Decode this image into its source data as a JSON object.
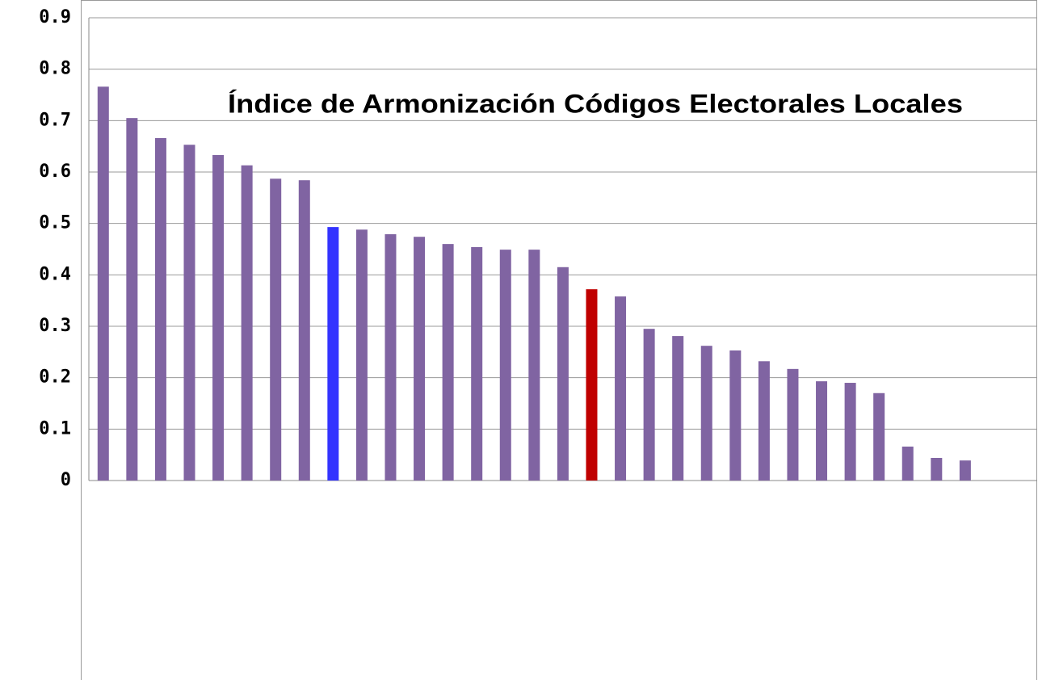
{
  "chart_data": {
    "type": "bar",
    "title": "Índice de Armonización Códigos Electorales Locales",
    "categories": [
      null,
      null,
      null,
      null,
      null,
      null,
      null,
      null,
      null,
      null,
      null,
      null,
      null,
      null,
      null,
      null,
      null,
      null,
      null,
      null,
      null,
      null,
      null,
      null,
      null,
      null,
      null,
      null,
      null,
      null,
      null
    ],
    "values": [
      0.766,
      0.705,
      0.666,
      0.653,
      0.633,
      0.613,
      0.587,
      0.584,
      0.493,
      0.488,
      0.479,
      0.474,
      0.46,
      0.454,
      0.449,
      0.449,
      0.415,
      0.372,
      0.358,
      0.295,
      0.281,
      0.262,
      0.253,
      0.232,
      0.217,
      0.193,
      0.19,
      0.17,
      0.066,
      0.044,
      0.039
    ],
    "colors": [
      "#8064a2",
      "#8064a2",
      "#8064a2",
      "#8064a2",
      "#8064a2",
      "#8064a2",
      "#8064a2",
      "#8064a2",
      "#3333ff",
      "#8064a2",
      "#8064a2",
      "#8064a2",
      "#8064a2",
      "#8064a2",
      "#8064a2",
      "#8064a2",
      "#8064a2",
      "#c00000",
      "#8064a2",
      "#8064a2",
      "#8064a2",
      "#8064a2",
      "#8064a2",
      "#8064a2",
      "#8064a2",
      "#8064a2",
      "#8064a2",
      "#8064a2",
      "#8064a2",
      "#8064a2",
      "#8064a2"
    ],
    "ylim": [
      0,
      0.9
    ],
    "yticks": [
      0,
      0.1,
      0.2,
      0.3,
      0.4,
      0.5,
      0.6,
      0.7,
      0.8,
      0.9
    ],
    "grid": true
  }
}
